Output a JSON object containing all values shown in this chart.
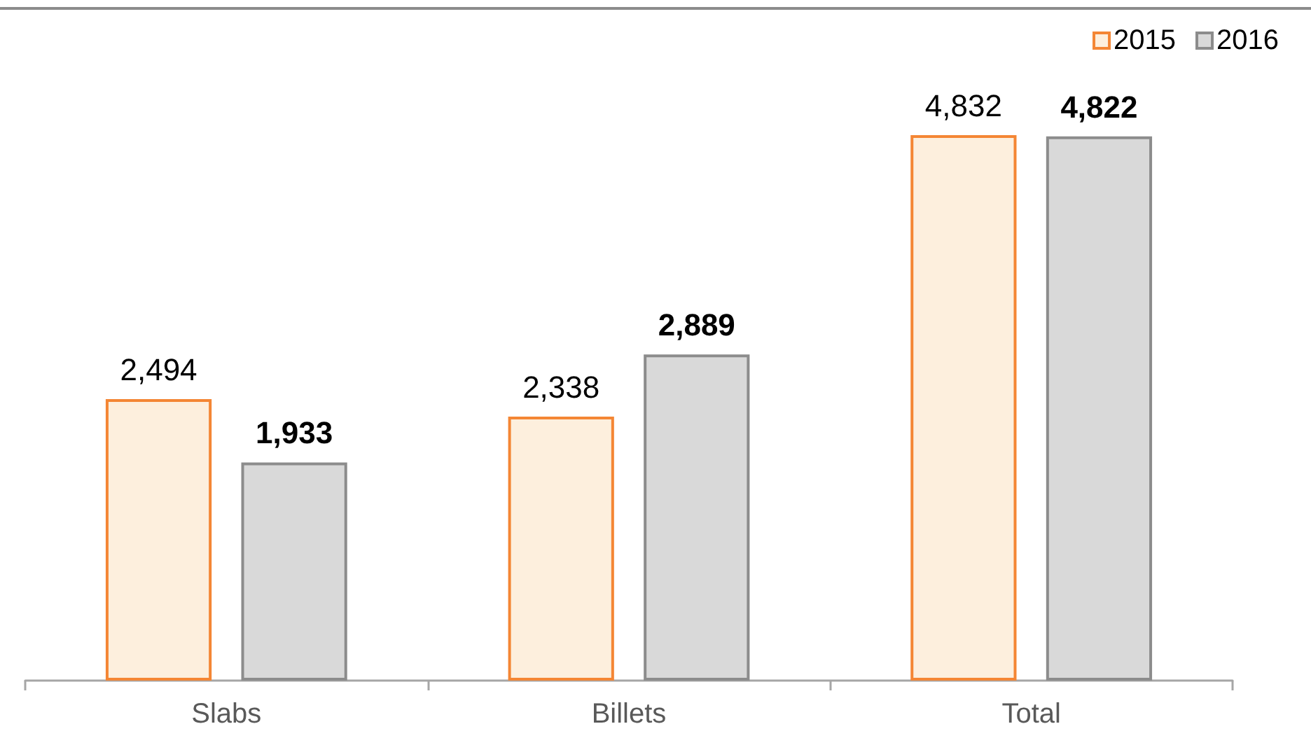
{
  "chart_data": {
    "type": "bar",
    "categories": [
      "Slabs",
      "Billets",
      "Total"
    ],
    "series": [
      {
        "name": "2015",
        "color": "#fdefdd",
        "values": [
          2494,
          2338,
          4832
        ],
        "value_labels": [
          "2,494",
          "2,338",
          "4,832"
        ]
      },
      {
        "name": "2016",
        "color": "#d9d9d9",
        "values": [
          1933,
          2889,
          4822
        ],
        "value_labels": [
          "1,933",
          "2,889",
          "4,822"
        ]
      }
    ],
    "legend": "top right",
    "grid": false
  }
}
